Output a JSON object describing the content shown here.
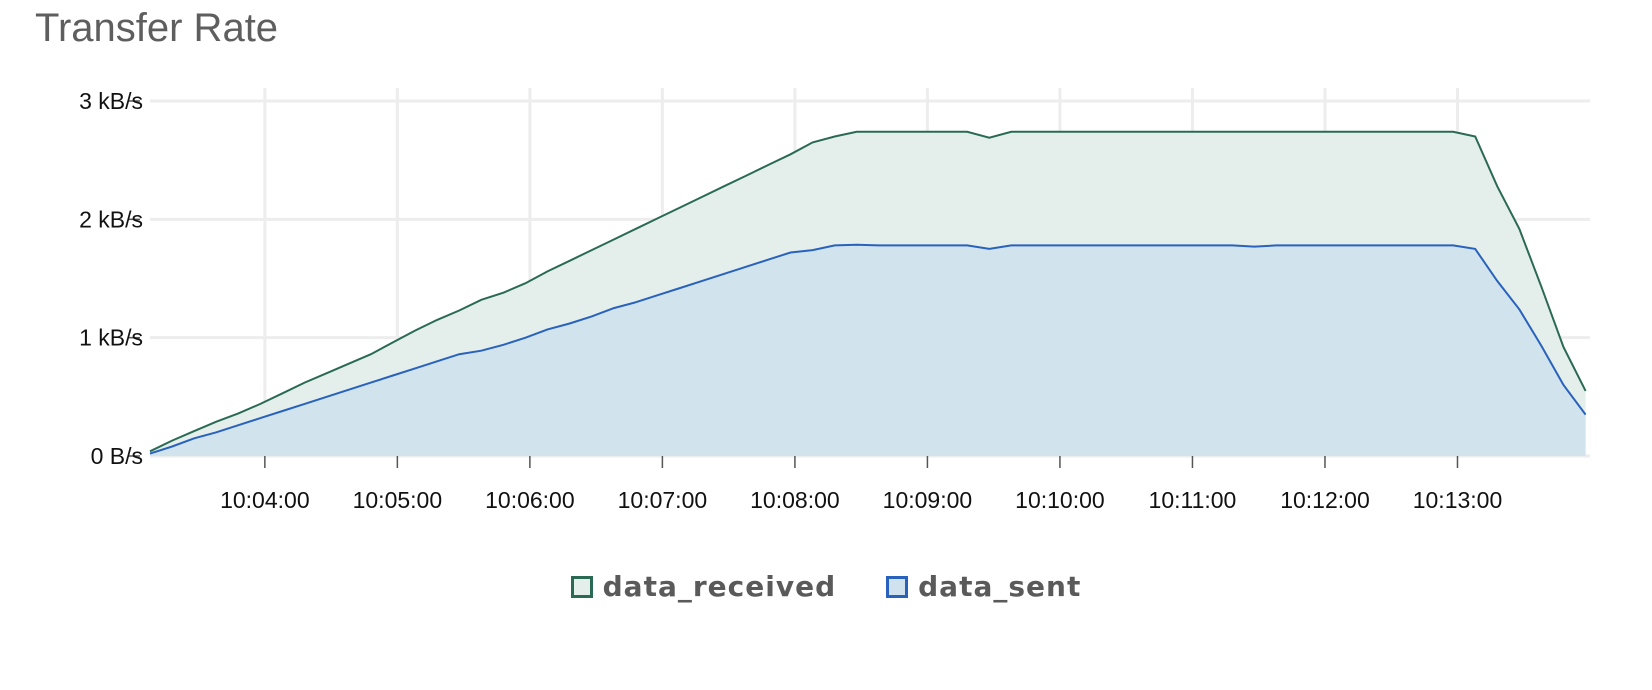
{
  "panel": {
    "title": "Transfer Rate"
  },
  "chart_data": {
    "type": "area",
    "title": "Transfer Rate",
    "ylim": [
      0,
      3000
    ],
    "y_ticks": [
      {
        "value": 0,
        "label": "0 B/s"
      },
      {
        "value": 1000,
        "label": "1 kB/s"
      },
      {
        "value": 2000,
        "label": "2 kB/s"
      },
      {
        "value": 3000,
        "label": "3 kB/s"
      }
    ],
    "x_range_seconds": [
      188,
      840
    ],
    "x_ticks": [
      {
        "value": 240,
        "label": "10:04:00"
      },
      {
        "value": 300,
        "label": "10:05:00"
      },
      {
        "value": 360,
        "label": "10:06:00"
      },
      {
        "value": 420,
        "label": "10:07:00"
      },
      {
        "value": 480,
        "label": "10:08:00"
      },
      {
        "value": 540,
        "label": "10:09:00"
      },
      {
        "value": 600,
        "label": "10:10:00"
      },
      {
        "value": 660,
        "label": "10:11:00"
      },
      {
        "value": 720,
        "label": "10:12:00"
      },
      {
        "value": 780,
        "label": "10:13:00"
      }
    ],
    "grid": true,
    "legend_position": "bottom-center",
    "series": [
      {
        "name": "data_received",
        "color": "#2a6a55",
        "fill": "#e4efec",
        "points": [
          [
            188,
            40
          ],
          [
            198,
            130
          ],
          [
            208,
            210
          ],
          [
            218,
            290
          ],
          [
            228,
            360
          ],
          [
            238,
            440
          ],
          [
            248,
            530
          ],
          [
            258,
            620
          ],
          [
            268,
            700
          ],
          [
            278,
            780
          ],
          [
            288,
            860
          ],
          [
            298,
            960
          ],
          [
            308,
            1060
          ],
          [
            318,
            1150
          ],
          [
            328,
            1230
          ],
          [
            338,
            1320
          ],
          [
            348,
            1380
          ],
          [
            358,
            1460
          ],
          [
            368,
            1560
          ],
          [
            378,
            1650
          ],
          [
            388,
            1740
          ],
          [
            398,
            1830
          ],
          [
            408,
            1920
          ],
          [
            418,
            2010
          ],
          [
            428,
            2100
          ],
          [
            438,
            2190
          ],
          [
            448,
            2280
          ],
          [
            458,
            2370
          ],
          [
            468,
            2460
          ],
          [
            478,
            2550
          ],
          [
            488,
            2650
          ],
          [
            498,
            2700
          ],
          [
            508,
            2740
          ],
          [
            518,
            2740
          ],
          [
            528,
            2740
          ],
          [
            538,
            2740
          ],
          [
            548,
            2740
          ],
          [
            558,
            2740
          ],
          [
            568,
            2690
          ],
          [
            578,
            2740
          ],
          [
            588,
            2740
          ],
          [
            598,
            2740
          ],
          [
            608,
            2740
          ],
          [
            618,
            2740
          ],
          [
            628,
            2740
          ],
          [
            638,
            2740
          ],
          [
            648,
            2740
          ],
          [
            658,
            2740
          ],
          [
            668,
            2740
          ],
          [
            678,
            2740
          ],
          [
            688,
            2740
          ],
          [
            698,
            2740
          ],
          [
            708,
            2740
          ],
          [
            718,
            2740
          ],
          [
            728,
            2740
          ],
          [
            738,
            2740
          ],
          [
            748,
            2740
          ],
          [
            758,
            2740
          ],
          [
            768,
            2740
          ],
          [
            778,
            2740
          ],
          [
            788,
            2700
          ],
          [
            798,
            2280
          ],
          [
            808,
            1920
          ],
          [
            818,
            1430
          ],
          [
            828,
            920
          ],
          [
            838,
            550
          ]
        ]
      },
      {
        "name": "data_sent",
        "color": "#2962bc",
        "fill": "#d0e2ed",
        "points": [
          [
            188,
            20
          ],
          [
            198,
            80
          ],
          [
            208,
            150
          ],
          [
            218,
            200
          ],
          [
            228,
            260
          ],
          [
            238,
            320
          ],
          [
            248,
            380
          ],
          [
            258,
            440
          ],
          [
            268,
            500
          ],
          [
            278,
            560
          ],
          [
            288,
            620
          ],
          [
            298,
            680
          ],
          [
            308,
            740
          ],
          [
            318,
            800
          ],
          [
            328,
            860
          ],
          [
            338,
            890
          ],
          [
            348,
            940
          ],
          [
            358,
            1000
          ],
          [
            368,
            1070
          ],
          [
            378,
            1120
          ],
          [
            388,
            1180
          ],
          [
            398,
            1250
          ],
          [
            408,
            1300
          ],
          [
            418,
            1360
          ],
          [
            428,
            1420
          ],
          [
            438,
            1480
          ],
          [
            448,
            1540
          ],
          [
            458,
            1600
          ],
          [
            468,
            1660
          ],
          [
            478,
            1720
          ],
          [
            488,
            1740
          ],
          [
            498,
            1780
          ],
          [
            508,
            1785
          ],
          [
            518,
            1780
          ],
          [
            528,
            1780
          ],
          [
            538,
            1780
          ],
          [
            548,
            1780
          ],
          [
            558,
            1780
          ],
          [
            568,
            1750
          ],
          [
            578,
            1780
          ],
          [
            588,
            1780
          ],
          [
            598,
            1780
          ],
          [
            608,
            1780
          ],
          [
            618,
            1780
          ],
          [
            628,
            1780
          ],
          [
            638,
            1780
          ],
          [
            648,
            1780
          ],
          [
            658,
            1780
          ],
          [
            668,
            1780
          ],
          [
            678,
            1780
          ],
          [
            688,
            1770
          ],
          [
            698,
            1780
          ],
          [
            708,
            1780
          ],
          [
            718,
            1780
          ],
          [
            728,
            1780
          ],
          [
            738,
            1780
          ],
          [
            748,
            1780
          ],
          [
            758,
            1780
          ],
          [
            768,
            1780
          ],
          [
            778,
            1780
          ],
          [
            788,
            1750
          ],
          [
            798,
            1480
          ],
          [
            808,
            1240
          ],
          [
            818,
            930
          ],
          [
            828,
            600
          ],
          [
            838,
            350
          ]
        ]
      }
    ]
  }
}
